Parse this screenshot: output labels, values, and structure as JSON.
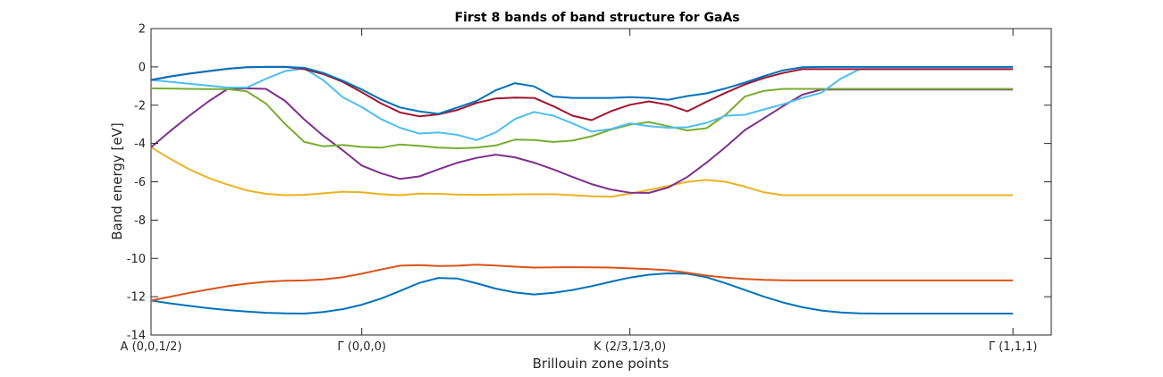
{
  "chart_data": {
    "type": "line",
    "title": "First 8 bands of band structure for GaAs",
    "xlabel": "Brillouin zone points",
    "ylabel": "Band energy [eV]",
    "xlim": [
      0,
      47
    ],
    "ylim": [
      -14,
      2
    ],
    "yticks": [
      2,
      0,
      -2,
      -4,
      -6,
      -8,
      -10,
      -12,
      -14
    ],
    "xticks": [
      {
        "x": 0,
        "label": "A (0,0,1/2)"
      },
      {
        "x": 11,
        "label": "Γ (0,0,0)"
      },
      {
        "x": 25,
        "label": "K (2/3,1/3,0)"
      },
      {
        "x": 45,
        "label": "Γ (1,1,1)"
      }
    ],
    "grid": false,
    "x": [
      0,
      1,
      2,
      3,
      4,
      5,
      6,
      7,
      8,
      9,
      10,
      11,
      12,
      13,
      14,
      15,
      16,
      17,
      18,
      19,
      20,
      21,
      22,
      23,
      24,
      25,
      26,
      27,
      28,
      29,
      30,
      31,
      32,
      33,
      34,
      35,
      36,
      37,
      38,
      39,
      40,
      41,
      42,
      43,
      44,
      45
    ],
    "series": [
      {
        "color": "#0072bd",
        "values": [
          -12.2,
          -12.35,
          -12.48,
          -12.6,
          -12.7,
          -12.78,
          -12.84,
          -12.87,
          -12.88,
          -12.8,
          -12.65,
          -12.42,
          -12.1,
          -11.7,
          -11.28,
          -11.02,
          -11.05,
          -11.3,
          -11.58,
          -11.78,
          -11.88,
          -11.8,
          -11.65,
          -11.45,
          -11.22,
          -11.0,
          -10.85,
          -10.78,
          -10.8,
          -10.98,
          -11.3,
          -11.65,
          -12.0,
          -12.3,
          -12.55,
          -12.72,
          -12.82,
          -12.87,
          -12.88,
          -12.88,
          -12.88,
          -12.88,
          -12.88,
          -12.88,
          -12.88,
          -12.88
        ]
      },
      {
        "color": "#d95319",
        "values": [
          -12.2,
          -12.0,
          -11.8,
          -11.62,
          -11.45,
          -11.32,
          -11.22,
          -11.17,
          -11.15,
          -11.1,
          -10.98,
          -10.8,
          -10.58,
          -10.38,
          -10.35,
          -10.4,
          -10.38,
          -10.33,
          -10.37,
          -10.43,
          -10.48,
          -10.47,
          -10.46,
          -10.47,
          -10.48,
          -10.52,
          -10.56,
          -10.62,
          -10.75,
          -10.9,
          -11.0,
          -11.07,
          -11.12,
          -11.14,
          -11.15,
          -11.15,
          -11.15,
          -11.15,
          -11.15,
          -11.15,
          -11.15,
          -11.15,
          -11.15,
          -11.15,
          -11.15,
          -11.15
        ]
      },
      {
        "color": "#edb120",
        "values": [
          -4.2,
          -4.8,
          -5.35,
          -5.8,
          -6.15,
          -6.45,
          -6.63,
          -6.7,
          -6.68,
          -6.6,
          -6.52,
          -6.55,
          -6.65,
          -6.7,
          -6.62,
          -6.63,
          -6.67,
          -6.68,
          -6.67,
          -6.66,
          -6.65,
          -6.65,
          -6.7,
          -6.75,
          -6.78,
          -6.62,
          -6.42,
          -6.22,
          -6.0,
          -5.9,
          -6.0,
          -6.25,
          -6.55,
          -6.7,
          -6.7,
          -6.7,
          -6.7,
          -6.7,
          -6.7,
          -6.7,
          -6.7,
          -6.7,
          -6.7,
          -6.7,
          -6.7,
          -6.7
        ]
      },
      {
        "color": "#7e2f8e",
        "values": [
          -4.2,
          -3.35,
          -2.55,
          -1.8,
          -1.15,
          -1.12,
          -1.15,
          -1.78,
          -2.75,
          -3.6,
          -4.35,
          -5.15,
          -5.55,
          -5.85,
          -5.72,
          -5.35,
          -5.0,
          -4.75,
          -4.58,
          -4.72,
          -5.0,
          -5.35,
          -5.75,
          -6.12,
          -6.4,
          -6.57,
          -6.58,
          -6.3,
          -5.75,
          -5.0,
          -4.18,
          -3.3,
          -2.68,
          -2.05,
          -1.45,
          -1.18,
          -1.18,
          -1.18,
          -1.18,
          -1.18,
          -1.18,
          -1.18,
          -1.18,
          -1.18,
          -1.18,
          -1.18
        ]
      },
      {
        "color": "#77ac30",
        "values": [
          -1.12,
          -1.13,
          -1.15,
          -1.16,
          -1.16,
          -1.28,
          -1.92,
          -2.98,
          -3.92,
          -4.15,
          -4.08,
          -4.18,
          -4.22,
          -4.05,
          -4.12,
          -4.22,
          -4.25,
          -4.22,
          -4.1,
          -3.8,
          -3.82,
          -3.92,
          -3.85,
          -3.62,
          -3.28,
          -3.02,
          -2.88,
          -3.1,
          -3.32,
          -3.2,
          -2.5,
          -1.55,
          -1.25,
          -1.15,
          -1.15,
          -1.15,
          -1.15,
          -1.15,
          -1.15,
          -1.15,
          -1.15,
          -1.15,
          -1.15,
          -1.15,
          -1.15,
          -1.15
        ]
      },
      {
        "color": "#4dbeee",
        "values": [
          -0.68,
          -0.78,
          -0.88,
          -0.98,
          -1.08,
          -1.08,
          -0.62,
          -0.22,
          -0.08,
          -0.7,
          -1.58,
          -2.1,
          -2.72,
          -3.18,
          -3.48,
          -3.42,
          -3.55,
          -3.82,
          -3.42,
          -2.72,
          -2.35,
          -2.55,
          -2.95,
          -3.38,
          -3.25,
          -2.95,
          -3.1,
          -3.18,
          -3.15,
          -2.92,
          -2.55,
          -2.5,
          -2.22,
          -1.95,
          -1.62,
          -1.35,
          -0.62,
          -0.12,
          -0.12,
          -0.12,
          -0.12,
          -0.12,
          -0.12,
          -0.12,
          -0.12,
          -0.12
        ]
      },
      {
        "color": "#a2142f",
        "values": [
          -0.68,
          -0.5,
          -0.35,
          -0.22,
          -0.1,
          -0.02,
          0.0,
          0.0,
          -0.12,
          -0.38,
          -0.78,
          -1.32,
          -1.9,
          -2.38,
          -2.58,
          -2.48,
          -2.25,
          -1.88,
          -1.65,
          -1.6,
          -1.62,
          -2.05,
          -2.55,
          -2.78,
          -2.32,
          -1.98,
          -1.8,
          -1.98,
          -2.32,
          -1.82,
          -1.35,
          -0.92,
          -0.58,
          -0.32,
          -0.12,
          -0.12,
          -0.12,
          -0.12,
          -0.12,
          -0.12,
          -0.12,
          -0.12,
          -0.12,
          -0.12,
          -0.12,
          -0.12
        ]
      },
      {
        "color": "#0072bd",
        "values": [
          -0.68,
          -0.5,
          -0.35,
          -0.22,
          -0.1,
          -0.02,
          0.0,
          0.0,
          -0.05,
          -0.32,
          -0.72,
          -1.18,
          -1.7,
          -2.12,
          -2.32,
          -2.45,
          -2.12,
          -1.78,
          -1.22,
          -0.85,
          -1.02,
          -1.55,
          -1.62,
          -1.62,
          -1.62,
          -1.58,
          -1.62,
          -1.72,
          -1.52,
          -1.38,
          -1.12,
          -0.82,
          -0.48,
          -0.18,
          -0.02,
          0.0,
          0.0,
          0.0,
          0.0,
          0.0,
          0.0,
          0.0,
          0.0,
          0.0,
          0.0,
          0.0
        ]
      }
    ]
  }
}
